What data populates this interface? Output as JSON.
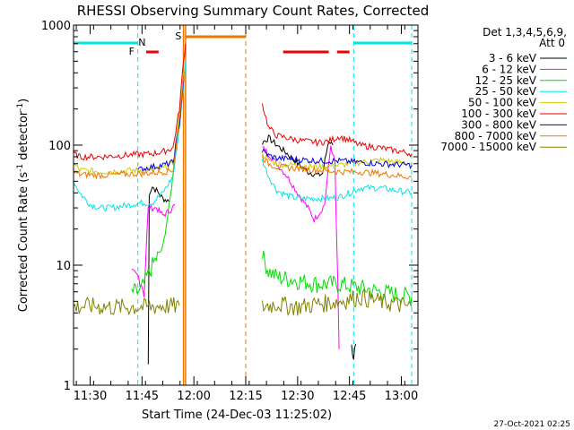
{
  "chart_data": {
    "type": "line",
    "title": "RHESSI Observing Summary Count Rates, Corrected",
    "xlabel": "Start Time (24-Dec-03 11:25:02)",
    "ylabel_main": "Corrected Count Rate (s",
    "ylabel_sup1": "-1",
    "ylabel_mid": " detector",
    "ylabel_sup2": "-1",
    "ylabel_end": ")",
    "yscale": "log",
    "ylim": [
      1,
      1000
    ],
    "xlim": [
      11.42,
      13.08
    ],
    "y_ticks": [
      {
        "value": 1,
        "label": "1"
      },
      {
        "value": 10,
        "label": "10"
      },
      {
        "value": 100,
        "label": "100"
      },
      {
        "value": 1000,
        "label": "1000"
      }
    ],
    "x_ticks": [
      {
        "value": 11.5,
        "label": "11:30"
      },
      {
        "value": 11.75,
        "label": "11:45"
      },
      {
        "value": 12.0,
        "label": "12:00"
      },
      {
        "value": 12.25,
        "label": "12:15"
      },
      {
        "value": 12.5,
        "label": "12:30"
      },
      {
        "value": 12.75,
        "label": "12:45"
      },
      {
        "value": 13.0,
        "label": "13:00"
      }
    ],
    "detectors_label": "Det 1,3,4,5,6,9,",
    "attenuator_label": "Att 0",
    "timestamp": "27-Oct-2021 02:25",
    "flags": [
      {
        "label": "N",
        "color": "#00e6e6"
      },
      {
        "label": "F",
        "color": "#ee0000"
      },
      {
        "label": "S",
        "color": "#ee7700"
      }
    ],
    "series": [
      {
        "name": "3 - 6 keV",
        "color": "#000000",
        "segments": [
          [
            [
              11.78,
              1.5
            ],
            [
              11.785,
              40
            ],
            [
              11.8,
              45
            ],
            [
              11.82,
              42
            ],
            [
              11.85,
              36
            ],
            [
              11.88,
              34
            ]
          ],
          [
            [
              12.33,
              105
            ],
            [
              12.36,
              115
            ],
            [
              12.4,
              100
            ],
            [
              12.45,
              85
            ],
            [
              12.5,
              70
            ],
            [
              12.55,
              60
            ],
            [
              12.6,
              56
            ],
            [
              12.62,
              58
            ],
            [
              12.65,
              110
            ],
            [
              12.67,
              100
            ]
          ],
          [
            [
              12.76,
              2.5
            ],
            [
              12.77,
              1.5
            ],
            [
              12.78,
              2.2
            ]
          ]
        ]
      },
      {
        "name": "6 - 12 keV",
        "color": "#ff00ff",
        "segments": [
          [
            [
              11.7,
              8
            ],
            [
              11.74,
              8
            ],
            [
              11.76,
              6
            ],
            [
              11.78,
              30
            ],
            [
              11.82,
              30
            ],
            [
              11.85,
              26
            ],
            [
              11.88,
              28
            ],
            [
              11.91,
              32
            ]
          ],
          [
            [
              12.33,
              95
            ],
            [
              12.36,
              85
            ],
            [
              12.4,
              70
            ],
            [
              12.45,
              55
            ],
            [
              12.5,
              40
            ],
            [
              12.55,
              30
            ],
            [
              12.58,
              24
            ],
            [
              12.61,
              28
            ],
            [
              12.63,
              32
            ],
            [
              12.66,
              100
            ],
            [
              12.68,
              70
            ],
            [
              12.7,
              2
            ]
          ]
        ]
      },
      {
        "name": "12 - 25 keV",
        "color": "#00dd00",
        "segments": [
          [
            [
              11.7,
              6
            ],
            [
              11.74,
              6
            ],
            [
              11.76,
              7
            ],
            [
              11.8,
              10
            ],
            [
              11.85,
              14
            ],
            [
              11.88,
              30
            ],
            [
              11.91,
              80
            ],
            [
              11.93,
              180
            ]
          ],
          [
            [
              12.33,
              12
            ],
            [
              12.36,
              9
            ],
            [
              12.4,
              8
            ],
            [
              12.5,
              7.5
            ],
            [
              12.6,
              7
            ],
            [
              12.7,
              7
            ],
            [
              12.8,
              6.5
            ],
            [
              12.9,
              6
            ],
            [
              13.05,
              5.5
            ]
          ]
        ]
      },
      {
        "name": "25 - 50 keV",
        "color": "#00e6e6",
        "segments": [
          [
            [
              11.42,
              50
            ],
            [
              11.45,
              40
            ],
            [
              11.5,
              32
            ],
            [
              11.55,
              30
            ],
            [
              11.6,
              30
            ],
            [
              11.65,
              31
            ],
            [
              11.7,
              32
            ],
            [
              11.73,
              33
            ],
            [
              11.74,
              33
            ],
            [
              11.76,
              33
            ],
            [
              11.8,
              33
            ],
            [
              11.85,
              40
            ],
            [
              11.9,
              55
            ],
            [
              11.93,
              140
            ],
            [
              11.95,
              300
            ],
            [
              11.96,
              500
            ]
          ],
          [
            [
              12.33,
              75
            ],
            [
              12.36,
              55
            ],
            [
              12.4,
              42
            ],
            [
              12.45,
              38
            ],
            [
              12.5,
              36
            ],
            [
              12.55,
              36
            ],
            [
              12.6,
              36
            ],
            [
              12.65,
              36
            ],
            [
              12.7,
              37
            ],
            [
              12.75,
              40
            ],
            [
              12.8,
              44
            ],
            [
              12.9,
              44
            ],
            [
              13.05,
              40
            ]
          ]
        ]
      },
      {
        "name": "50 - 100 keV",
        "color": "#cccc00",
        "segments": [
          [
            [
              11.42,
              70
            ],
            [
              11.45,
              62
            ],
            [
              11.55,
              60
            ],
            [
              11.65,
              61
            ],
            [
              11.73,
              62
            ],
            [
              11.76,
              62
            ],
            [
              11.8,
              62
            ],
            [
              11.85,
              64
            ],
            [
              11.9,
              70
            ],
            [
              11.93,
              180
            ],
            [
              11.95,
              400
            ]
          ],
          [
            [
              12.33,
              85
            ],
            [
              12.36,
              75
            ],
            [
              12.4,
              70
            ],
            [
              12.5,
              68
            ],
            [
              12.6,
              66
            ],
            [
              12.7,
              68
            ],
            [
              12.8,
              72
            ],
            [
              12.9,
              75
            ],
            [
              13.05,
              70
            ]
          ]
        ]
      },
      {
        "name": "100 - 300 keV",
        "color": "#ee0000",
        "segments": [
          [
            [
              11.42,
              85
            ],
            [
              11.45,
              80
            ],
            [
              11.55,
              80
            ],
            [
              11.65,
              82
            ],
            [
              11.73,
              84
            ],
            [
              11.76,
              84
            ],
            [
              11.8,
              85
            ],
            [
              11.85,
              88
            ],
            [
              11.9,
              95
            ],
            [
              11.93,
              200
            ],
            [
              11.95,
              500
            ],
            [
              11.96,
              700
            ]
          ],
          [
            [
              12.33,
              220
            ],
            [
              12.36,
              140
            ],
            [
              12.4,
              120
            ],
            [
              12.5,
              110
            ],
            [
              12.6,
              105
            ],
            [
              12.65,
              108
            ],
            [
              12.7,
              118
            ],
            [
              12.75,
              110
            ],
            [
              12.8,
              100
            ],
            [
              12.9,
              95
            ],
            [
              13.05,
              85
            ]
          ]
        ]
      },
      {
        "name": "300 - 800 keV",
        "color": "#0000dd",
        "segments": [
          [
            [
              11.73,
              62
            ],
            [
              11.76,
              64
            ],
            [
              11.8,
              66
            ],
            [
              11.85,
              68
            ],
            [
              11.9,
              72
            ],
            [
              11.93,
              150
            ],
            [
              11.95,
              350
            ]
          ],
          [
            [
              12.33,
              90
            ],
            [
              12.36,
              82
            ],
            [
              12.4,
              78
            ],
            [
              12.5,
              76
            ],
            [
              12.6,
              74
            ],
            [
              12.7,
              74
            ],
            [
              12.8,
              72
            ],
            [
              12.9,
              70
            ],
            [
              13.05,
              68
            ]
          ]
        ]
      },
      {
        "name": "800 - 7000 keV",
        "color": "#ee7700",
        "segments": [
          [
            [
              11.42,
              60
            ],
            [
              11.45,
              57
            ],
            [
              11.55,
              56
            ],
            [
              11.65,
              57
            ],
            [
              11.73,
              58
            ],
            [
              11.76,
              58
            ],
            [
              11.85,
              60
            ],
            [
              11.9,
              62
            ],
            [
              11.93,
              160
            ],
            [
              11.95,
              380
            ]
          ],
          [
            [
              12.33,
              80
            ],
            [
              12.36,
              70
            ],
            [
              12.4,
              66
            ],
            [
              12.5,
              64
            ],
            [
              12.6,
              62
            ],
            [
              12.7,
              60
            ],
            [
              12.8,
              60
            ],
            [
              12.9,
              58
            ],
            [
              13.05,
              54
            ]
          ]
        ]
      },
      {
        "name": "7000 - 15000 keV",
        "color": "#808000",
        "segments": [
          [
            [
              11.42,
              4.5
            ],
            [
              11.5,
              4.6
            ],
            [
              11.6,
              4.5
            ],
            [
              11.7,
              4.5
            ],
            [
              11.78,
              4.5
            ],
            [
              11.85,
              4.6
            ],
            [
              11.93,
              4.6
            ]
          ],
          [
            [
              12.33,
              4.5
            ],
            [
              12.4,
              4.8
            ],
            [
              12.5,
              4.5
            ],
            [
              12.6,
              4.8
            ],
            [
              12.7,
              5
            ],
            [
              12.8,
              5.5
            ],
            [
              12.9,
              5
            ],
            [
              13.05,
              4.5
            ]
          ]
        ]
      }
    ],
    "night_bars": [
      [
        11.42,
        11.73
      ],
      [
        12.77,
        13.05
      ]
    ],
    "flare_bars": [
      [
        11.77,
        11.83
      ],
      [
        12.43,
        12.65
      ],
      [
        12.69,
        12.75
      ]
    ],
    "saa_bars": [
      [
        11.96,
        12.25
      ]
    ],
    "night_lines": [
      11.73,
      12.77,
      13.05
    ],
    "saa_lines": [
      11.95,
      11.96,
      12.25
    ]
  }
}
